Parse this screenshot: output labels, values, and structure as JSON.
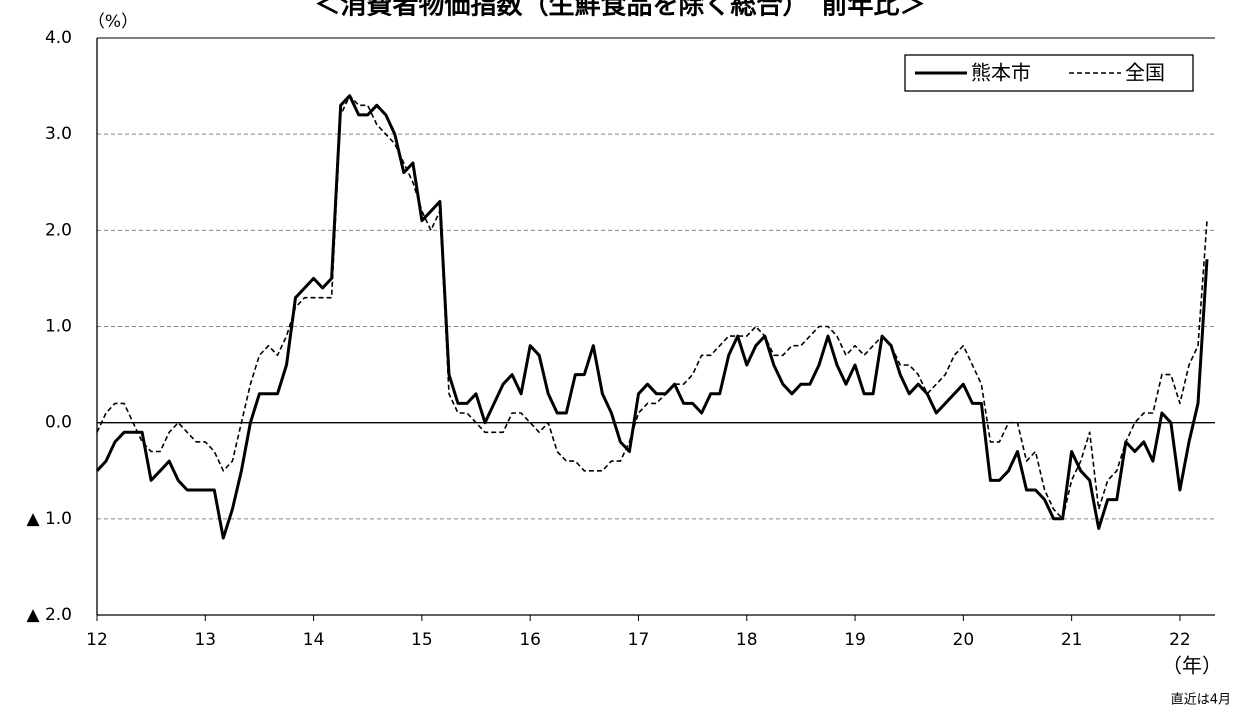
{
  "chart_data": {
    "type": "line",
    "title": "＜消費者物価指数（生鮮食品を除く総合）　前年比＞",
    "y_label": "（%）",
    "x_label": "（年）",
    "note": "直近は4月",
    "categories": [
      "12",
      null,
      null,
      null,
      null,
      null,
      null,
      null,
      null,
      null,
      null,
      null,
      "13",
      null,
      null,
      null,
      null,
      null,
      null,
      null,
      null,
      null,
      null,
      null,
      "14",
      null,
      null,
      null,
      null,
      null,
      null,
      null,
      null,
      null,
      null,
      null,
      "15",
      null,
      null,
      null,
      null,
      null,
      null,
      null,
      null,
      null,
      null,
      null,
      "16",
      null,
      null,
      null,
      null,
      null,
      null,
      null,
      null,
      null,
      null,
      null,
      "17",
      null,
      null,
      null,
      null,
      null,
      null,
      null,
      null,
      null,
      null,
      null,
      "18",
      null,
      null,
      null,
      null,
      null,
      null,
      null,
      null,
      null,
      null,
      null,
      "19",
      null,
      null,
      null,
      null,
      null,
      null,
      null,
      null,
      null,
      null,
      null,
      "20",
      null,
      null,
      null,
      null,
      null,
      null,
      null,
      null,
      null,
      null,
      null,
      "21",
      null,
      null,
      null,
      null,
      null,
      null,
      null,
      null,
      null,
      null,
      null,
      "22",
      null,
      null,
      null
    ],
    "series": [
      {
        "name": "熊本市",
        "color": "#000000",
        "style": "solid",
        "values": [
          -0.5,
          -0.4,
          -0.2,
          -0.1,
          -0.1,
          -0.1,
          -0.6,
          -0.5,
          -0.4,
          -0.6,
          -0.7,
          -0.7,
          -0.7,
          -0.7,
          -1.2,
          -0.9,
          -0.5,
          0.0,
          0.3,
          0.3,
          0.3,
          0.6,
          1.3,
          1.4,
          1.5,
          1.4,
          1.5,
          3.3,
          3.4,
          3.2,
          3.2,
          3.3,
          3.2,
          3.0,
          2.6,
          2.7,
          2.1,
          2.2,
          2.3,
          0.5,
          0.2,
          0.2,
          0.3,
          0.0,
          0.2,
          0.4,
          0.5,
          0.3,
          0.8,
          0.7,
          0.3,
          0.1,
          0.1,
          0.5,
          0.5,
          0.8,
          0.3,
          0.1,
          -0.2,
          -0.3,
          0.3,
          0.4,
          0.3,
          0.3,
          0.4,
          0.2,
          0.2,
          0.1,
          0.3,
          0.3,
          0.7,
          0.9,
          0.6,
          0.8,
          0.9,
          0.6,
          0.4,
          0.3,
          0.4,
          0.4,
          0.6,
          0.9,
          0.6,
          0.4,
          0.6,
          0.3,
          0.3,
          0.9,
          0.8,
          0.5,
          0.3,
          0.4,
          0.3,
          0.1,
          0.2,
          0.3,
          0.4,
          0.2,
          0.2,
          -0.6,
          -0.6,
          -0.5,
          -0.3,
          -0.7,
          -0.7,
          -0.8,
          -1.0,
          -1.0,
          -0.3,
          -0.5,
          -0.6,
          -1.1,
          -0.8,
          -0.8,
          -0.2,
          -0.3,
          -0.2,
          -0.4,
          0.1,
          0.0,
          -0.7,
          -0.2,
          0.2,
          1.7
        ]
      },
      {
        "name": "全国",
        "color": "#000000",
        "style": "dashed",
        "values": [
          -0.1,
          0.1,
          0.2,
          0.2,
          0.0,
          -0.2,
          -0.3,
          -0.3,
          -0.1,
          0.0,
          -0.1,
          -0.2,
          -0.2,
          -0.3,
          -0.5,
          -0.4,
          0.0,
          0.4,
          0.7,
          0.8,
          0.7,
          0.9,
          1.2,
          1.3,
          1.3,
          1.3,
          1.3,
          3.2,
          3.4,
          3.3,
          3.3,
          3.1,
          3.0,
          2.9,
          2.7,
          2.5,
          2.2,
          2.0,
          2.2,
          0.3,
          0.1,
          0.1,
          0.0,
          -0.1,
          -0.1,
          -0.1,
          0.1,
          0.1,
          0.0,
          -0.1,
          0.0,
          -0.3,
          -0.4,
          -0.4,
          -0.5,
          -0.5,
          -0.5,
          -0.4,
          -0.4,
          -0.2,
          0.1,
          0.2,
          0.2,
          0.3,
          0.4,
          0.4,
          0.5,
          0.7,
          0.7,
          0.8,
          0.9,
          0.9,
          0.9,
          1.0,
          0.9,
          0.7,
          0.7,
          0.8,
          0.8,
          0.9,
          1.0,
          1.0,
          0.9,
          0.7,
          0.8,
          0.7,
          0.8,
          0.9,
          0.8,
          0.6,
          0.6,
          0.5,
          0.3,
          0.4,
          0.5,
          0.7,
          0.8,
          0.6,
          0.4,
          -0.2,
          -0.2,
          0.0,
          0.0,
          -0.4,
          -0.3,
          -0.7,
          -0.9,
          -1.0,
          -0.6,
          -0.4,
          -0.1,
          -0.9,
          -0.6,
          -0.5,
          -0.2,
          0.0,
          0.1,
          0.1,
          0.5,
          0.5,
          0.2,
          0.6,
          0.8,
          2.1
        ]
      }
    ],
    "ylim": [
      -2,
      4
    ],
    "yticks": [
      {
        "value": 4,
        "label": "4.0"
      },
      {
        "value": 3,
        "label": "3.0"
      },
      {
        "value": 2,
        "label": "2.0"
      },
      {
        "value": 1,
        "label": "1.0"
      },
      {
        "value": 0,
        "label": "0.0"
      },
      {
        "value": -1,
        "label": "▲ 1.0"
      },
      {
        "value": -2,
        "label": "▲ 2.0"
      }
    ],
    "grid": true,
    "legend": "upper right"
  }
}
